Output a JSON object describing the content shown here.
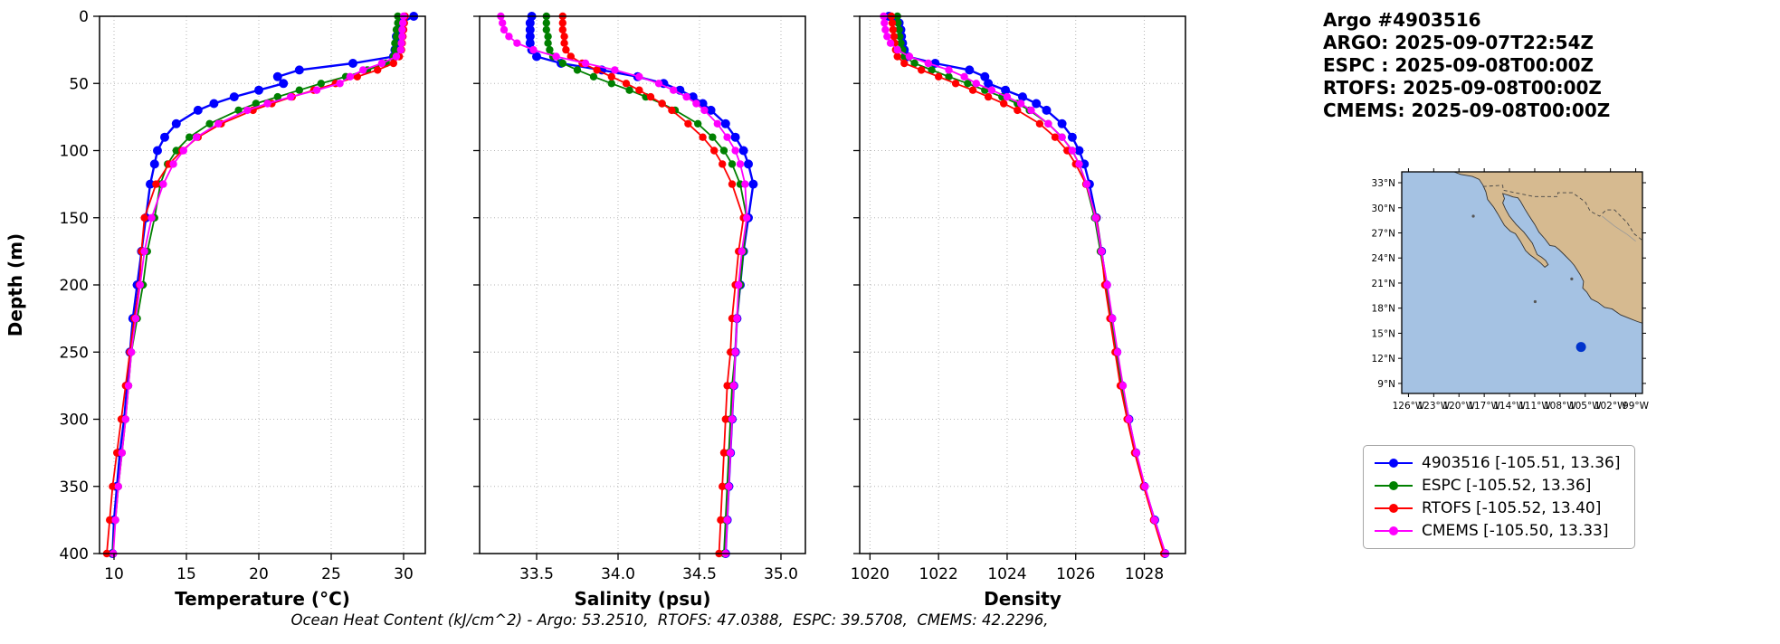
{
  "header": {
    "title": "Argo #4903516",
    "lines": [
      "ARGO: 2025-09-07T22:54Z",
      "ESPC : 2025-09-08T00:00Z",
      "RTOFS: 2025-09-08T00:00Z",
      "CMEMS: 2025-09-08T00:00Z"
    ]
  },
  "footer": {
    "text": "Ocean Heat Content (kJ/cm^2) - Argo: 53.2510,  RTOFS: 47.0388,  ESPC: 39.5708,  CMEMS: 42.2296,"
  },
  "legend": {
    "items": [
      {
        "label": "4903516 [-105.51, 13.36]",
        "color": "#0000ff"
      },
      {
        "label": "ESPC [-105.52, 13.36]",
        "color": "#008000"
      },
      {
        "label": "RTOFS [-105.52, 13.40]",
        "color": "#ff0000"
      },
      {
        "label": "CMEMS [-105.50, 13.33]",
        "color": "#ff00ff"
      }
    ]
  },
  "map": {
    "ocean_color": "#a5c2e3",
    "land_color": "#d6ba90",
    "float_marker": {
      "lon": -105.5,
      "lat": 13.36,
      "color": "#0033cc"
    },
    "lat_ticks": [
      {
        "value": 33,
        "label": "33°N"
      },
      {
        "value": 30,
        "label": "30°N"
      },
      {
        "value": 27,
        "label": "27°N"
      },
      {
        "value": 24,
        "label": "24°N"
      },
      {
        "value": 21,
        "label": "21°N"
      },
      {
        "value": 18,
        "label": "18°N"
      },
      {
        "value": 15,
        "label": "15°N"
      },
      {
        "value": 12,
        "label": "12°N"
      },
      {
        "value": 9,
        "label": "9°N"
      }
    ],
    "lon_ticks": [
      {
        "value": -126,
        "label": "126°W"
      },
      {
        "value": -123,
        "label": "123°W"
      },
      {
        "value": -120,
        "label": "120°W"
      },
      {
        "value": -117,
        "label": "117°W"
      },
      {
        "value": -114,
        "label": "114°W"
      },
      {
        "value": -111,
        "label": "111°W"
      },
      {
        "value": -108,
        "label": "108°W"
      },
      {
        "value": -105,
        "label": "105°W"
      },
      {
        "value": -102,
        "label": "102°W"
      },
      {
        "value": -99,
        "label": "99°W"
      }
    ]
  },
  "chart_data": {
    "type": "line",
    "ylabel": "Depth (m)",
    "ylim": [
      0,
      400
    ],
    "y_ticks": [
      0,
      50,
      100,
      150,
      200,
      250,
      300,
      350,
      400
    ],
    "grid": "dotted",
    "depths": [
      0,
      5,
      10,
      15,
      20,
      25,
      30,
      35,
      40,
      45,
      50,
      55,
      60,
      65,
      70,
      80,
      90,
      100,
      110,
      125,
      150,
      175,
      200,
      225,
      250,
      275,
      300,
      325,
      350,
      375,
      400
    ],
    "series": [
      {
        "name": "4903516",
        "color": "#0000ff"
      },
      {
        "name": "ESPC",
        "color": "#008000"
      },
      {
        "name": "RTOFS",
        "color": "#ff0000"
      },
      {
        "name": "CMEMS",
        "color": "#ff00ff"
      }
    ],
    "panels": [
      {
        "xlabel": "Temperature (°C)",
        "xlim": [
          9.0,
          31.5
        ],
        "x_ticks": [
          10,
          15,
          20,
          25,
          30
        ],
        "x_tick_labels": [
          "10",
          "15",
          "20",
          "25",
          "30"
        ],
        "values": {
          "4903516": [
            30.7,
            29.8,
            29.6,
            29.5,
            29.5,
            29.4,
            29.3,
            26.5,
            22.8,
            21.3,
            21.7,
            20.0,
            18.3,
            16.9,
            15.8,
            14.3,
            13.5,
            13.0,
            12.8,
            12.5,
            12.2,
            11.9,
            11.6,
            11.3,
            11.1,
            10.9,
            10.7,
            10.4,
            10.2,
            10.0,
            9.9
          ],
          "ESPC": [
            29.6,
            29.6,
            29.5,
            29.5,
            29.4,
            29.4,
            29.3,
            28.8,
            27.5,
            26.0,
            24.3,
            22.8,
            21.3,
            19.8,
            18.6,
            16.6,
            15.2,
            14.3,
            13.7,
            13.2,
            12.8,
            12.3,
            12.0,
            11.6,
            11.2,
            11.0,
            10.8,
            10.55,
            10.3,
            10.1,
            9.9
          ],
          "RTOFS": [
            30.1,
            30.05,
            30.0,
            29.95,
            29.9,
            29.85,
            29.7,
            29.3,
            28.2,
            26.8,
            25.3,
            23.8,
            22.3,
            20.9,
            19.6,
            17.4,
            15.8,
            14.7,
            13.8,
            12.9,
            12.1,
            11.9,
            11.75,
            11.4,
            11.1,
            10.8,
            10.5,
            10.2,
            9.9,
            9.7,
            9.5
          ],
          "CMEMS": [
            30.0,
            29.95,
            29.9,
            29.9,
            29.85,
            29.8,
            29.5,
            28.5,
            27.2,
            26.3,
            25.6,
            24.0,
            22.2,
            20.6,
            19.2,
            17.2,
            15.7,
            14.8,
            14.1,
            13.4,
            12.6,
            12.1,
            11.8,
            11.5,
            11.2,
            11.0,
            10.8,
            10.55,
            10.3,
            10.1,
            9.95
          ]
        }
      },
      {
        "xlabel": "Salinity (psu)",
        "xlim": [
          33.15,
          35.15
        ],
        "x_ticks": [
          33.5,
          34.0,
          34.5,
          35.0
        ],
        "x_tick_labels": [
          "33.5",
          "34.0",
          "34.5",
          "35.0"
        ],
        "values": {
          "4903516": [
            33.47,
            33.46,
            33.46,
            33.46,
            33.46,
            33.47,
            33.5,
            33.65,
            33.9,
            34.12,
            34.28,
            34.38,
            34.46,
            34.52,
            34.57,
            34.66,
            34.72,
            34.77,
            34.8,
            34.83,
            34.8,
            34.77,
            34.75,
            34.73,
            34.72,
            34.71,
            34.7,
            34.69,
            34.68,
            34.67,
            34.66
          ],
          "ESPC": [
            33.56,
            33.56,
            33.56,
            33.57,
            33.57,
            33.58,
            33.6,
            33.66,
            33.75,
            33.85,
            33.96,
            34.07,
            34.17,
            34.27,
            34.35,
            34.49,
            34.58,
            34.65,
            34.7,
            34.75,
            34.79,
            34.77,
            34.75,
            34.73,
            34.72,
            34.7,
            34.69,
            34.68,
            34.67,
            34.66,
            34.65
          ],
          "RTOFS": [
            33.66,
            33.66,
            33.66,
            33.67,
            33.67,
            33.68,
            33.71,
            33.78,
            33.87,
            33.96,
            34.05,
            34.13,
            34.2,
            34.27,
            34.33,
            34.43,
            34.52,
            34.59,
            34.64,
            34.7,
            34.77,
            34.74,
            34.72,
            34.7,
            34.69,
            34.67,
            34.66,
            34.65,
            34.64,
            34.63,
            34.62
          ],
          "CMEMS": [
            33.28,
            33.29,
            33.3,
            33.33,
            33.38,
            33.48,
            33.62,
            33.8,
            33.98,
            34.13,
            34.25,
            34.34,
            34.42,
            34.48,
            34.53,
            34.61,
            34.67,
            34.72,
            34.75,
            34.78,
            34.79,
            34.76,
            34.74,
            34.73,
            34.72,
            34.71,
            34.7,
            34.69,
            34.68,
            34.67,
            34.66
          ]
        }
      },
      {
        "xlabel": "Density",
        "xlim": [
          1019.7,
          1029.2
        ],
        "x_ticks": [
          1020,
          1022,
          1024,
          1026,
          1028
        ],
        "x_tick_labels": [
          "1020",
          "1022",
          "1024",
          "1026",
          "1028"
        ],
        "values": {
          "4903516": [
            1020.55,
            1020.85,
            1020.9,
            1020.92,
            1020.95,
            1021.0,
            1021.1,
            1021.9,
            1022.9,
            1023.35,
            1023.45,
            1023.95,
            1024.45,
            1024.85,
            1025.15,
            1025.6,
            1025.9,
            1026.1,
            1026.25,
            1026.4,
            1026.6,
            1026.75,
            1026.9,
            1027.05,
            1027.2,
            1027.35,
            1027.55,
            1027.75,
            1028.0,
            1028.3,
            1028.6
          ],
          "ESPC": [
            1020.8,
            1020.82,
            1020.85,
            1020.87,
            1020.9,
            1020.95,
            1021.0,
            1021.3,
            1021.8,
            1022.3,
            1022.85,
            1023.35,
            1023.85,
            1024.3,
            1024.65,
            1025.2,
            1025.6,
            1025.9,
            1026.1,
            1026.3,
            1026.55,
            1026.72,
            1026.88,
            1027.03,
            1027.18,
            1027.35,
            1027.53,
            1027.75,
            1028.0,
            1028.28,
            1028.58
          ],
          "RTOFS": [
            1020.62,
            1020.65,
            1020.67,
            1020.7,
            1020.72,
            1020.75,
            1020.8,
            1021.0,
            1021.5,
            1022.0,
            1022.5,
            1023.0,
            1023.45,
            1023.9,
            1024.3,
            1024.95,
            1025.4,
            1025.75,
            1026.0,
            1026.3,
            1026.6,
            1026.75,
            1026.85,
            1027.0,
            1027.15,
            1027.3,
            1027.5,
            1027.72,
            1027.98,
            1028.27,
            1028.57
          ],
          "CMEMS": [
            1020.4,
            1020.42,
            1020.45,
            1020.5,
            1020.6,
            1020.8,
            1021.15,
            1021.7,
            1022.3,
            1022.75,
            1023.1,
            1023.55,
            1024.0,
            1024.4,
            1024.7,
            1025.2,
            1025.6,
            1025.9,
            1026.1,
            1026.32,
            1026.58,
            1026.75,
            1026.92,
            1027.07,
            1027.22,
            1027.38,
            1027.55,
            1027.77,
            1028.02,
            1028.3,
            1028.62
          ]
        }
      }
    ]
  }
}
